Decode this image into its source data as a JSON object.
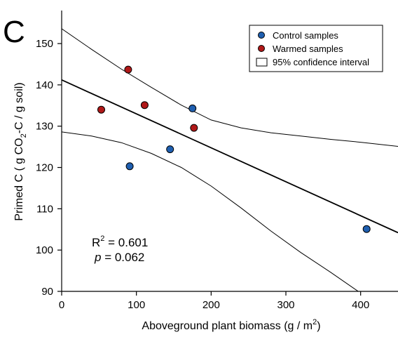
{
  "panel_label": "C",
  "chart_data": {
    "type": "scatter",
    "xlabel": {
      "main": "Aboveground plant biomass (g / m",
      "sup": "2",
      "tail": ")"
    },
    "ylabel": {
      "main": "Primed C (  g CO",
      "sub": "2",
      "tail": "-C / g soil)"
    },
    "xlim": [
      0,
      450
    ],
    "ylim": [
      90,
      158
    ],
    "xticks": [
      "0",
      "100",
      "200",
      "300",
      "400"
    ],
    "yticks": [
      "90",
      "100",
      "110",
      "120",
      "130",
      "140",
      "150"
    ],
    "series": [
      {
        "name": "Control samples",
        "color": "#1f5fb0",
        "points": [
          {
            "x": 91,
            "y": 120.3
          },
          {
            "x": 145,
            "y": 124.4
          },
          {
            "x": 175,
            "y": 134.3
          },
          {
            "x": 408,
            "y": 105.1
          }
        ]
      },
      {
        "name": "Warmed samples",
        "color": "#b01818",
        "points": [
          {
            "x": 53,
            "y": 134.0
          },
          {
            "x": 89,
            "y": 143.7
          },
          {
            "x": 111,
            "y": 135.1
          },
          {
            "x": 177,
            "y": 129.6
          }
        ]
      }
    ],
    "regression": {
      "intercept": 141.2,
      "slope": -0.0822
    },
    "confidence_band": {
      "upper": [
        {
          "x": 0,
          "y": 153.6
        },
        {
          "x": 40,
          "y": 148.6
        },
        {
          "x": 80,
          "y": 143.8
        },
        {
          "x": 120,
          "y": 139.4
        },
        {
          "x": 160,
          "y": 135.1
        },
        {
          "x": 200,
          "y": 131.5
        },
        {
          "x": 240,
          "y": 129.6
        },
        {
          "x": 280,
          "y": 128.4
        },
        {
          "x": 320,
          "y": 127.6
        },
        {
          "x": 360,
          "y": 126.8
        },
        {
          "x": 400,
          "y": 126.1
        },
        {
          "x": 450,
          "y": 125.1
        }
      ],
      "lower": [
        {
          "x": 0,
          "y": 128.6
        },
        {
          "x": 40,
          "y": 127.6
        },
        {
          "x": 80,
          "y": 126.0
        },
        {
          "x": 120,
          "y": 123.4
        },
        {
          "x": 160,
          "y": 120.0
        },
        {
          "x": 200,
          "y": 115.5
        },
        {
          "x": 240,
          "y": 110.2
        },
        {
          "x": 280,
          "y": 104.6
        },
        {
          "x": 320,
          "y": 99.4
        },
        {
          "x": 360,
          "y": 94.6
        },
        {
          "x": 400,
          "y": 89.6
        }
      ]
    },
    "legend": {
      "position": "top-right",
      "entries": [
        "Control samples",
        "Warmed samples",
        "95% confidence interval"
      ]
    },
    "annotation": {
      "r2_prefix": "R",
      "r2_sup": "2",
      "r2_value": " = 0.601",
      "p_prefix": "p",
      "p_value": " = 0.062"
    }
  }
}
